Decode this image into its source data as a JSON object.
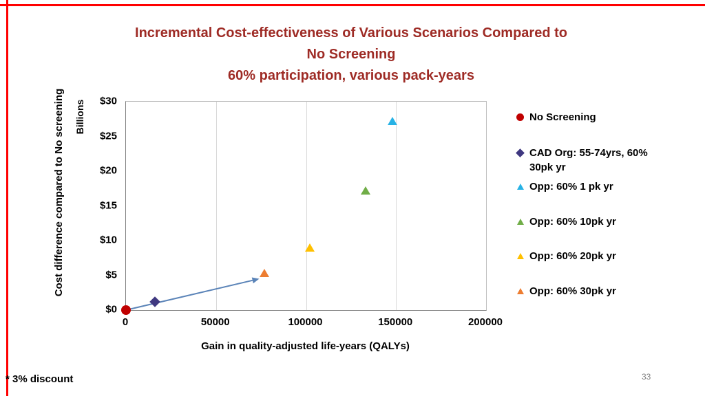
{
  "slide": {
    "footnote": "* 3% discount",
    "page_number": "33",
    "accent_border_color": "#FF0000",
    "title_color": "#9E2B25"
  },
  "chart_data": {
    "type": "scatter",
    "title": "Incremental Cost-effectiveness of Various Scenarios Compared to No Screening — 60% participation, various pack-years",
    "title_lines": [
      "Incremental Cost-effectiveness of Various Scenarios Compared to",
      "No Screening",
      "60% participation, various pack-years"
    ],
    "xlabel": "Gain in quality-adjusted life-years (QALYs)",
    "ylabel": "Cost difference compared to No screening",
    "ylabel_units": "Billions",
    "xlim": [
      0,
      200000
    ],
    "ylim": [
      0,
      30
    ],
    "x_ticks": [
      0,
      50000,
      100000,
      150000,
      200000
    ],
    "x_tick_labels": [
      "0",
      "50000",
      "100000",
      "150000",
      "200000"
    ],
    "y_ticks": [
      0,
      5,
      10,
      15,
      20,
      25,
      30
    ],
    "y_tick_labels": [
      "$0",
      "$5",
      "$10",
      "$15",
      "$20",
      "$25",
      "$30"
    ],
    "grid": "vertical",
    "legend_position": "right",
    "series": [
      {
        "name": "No Screening",
        "marker": "circle",
        "color": "#C00000",
        "points": [
          [
            0,
            0
          ]
        ]
      },
      {
        "name": "CAD Org: 55-74yrs, 60% 30pk yr",
        "legend_lines": [
          "CAD Org: 55-74yrs, 60%",
          "30pk yr"
        ],
        "marker": "diamond",
        "color": "#3F3880",
        "points": [
          [
            16000,
            1.2
          ]
        ]
      },
      {
        "name": "Opp: 60% 1 pk yr",
        "marker": "triangle",
        "color": "#27B2E5",
        "points": [
          [
            148000,
            27.2
          ]
        ]
      },
      {
        "name": "Opp: 60% 10pk yr",
        "marker": "triangle",
        "color": "#70AD47",
        "points": [
          [
            133000,
            17.2
          ]
        ]
      },
      {
        "name": "Opp: 60% 20pk yr",
        "marker": "triangle",
        "color": "#FFC000",
        "points": [
          [
            102000,
            9.0
          ]
        ]
      },
      {
        "name": "Opp: 60% 30pk yr",
        "marker": "triangle",
        "color": "#ED7D31",
        "points": [
          [
            77000,
            5.3
          ]
        ]
      }
    ],
    "trend_arrow": {
      "from": [
        0,
        0
      ],
      "to": [
        74000,
        4.5
      ],
      "color": "#5B84B8"
    }
  }
}
